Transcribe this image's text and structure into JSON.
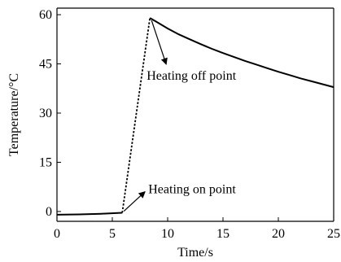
{
  "chart_data": {
    "type": "line",
    "title": "",
    "xlabel": "Time/s",
    "ylabel": "Temperature/°C",
    "xlim": [
      0,
      25
    ],
    "ylim": [
      -3,
      62
    ],
    "xticks": [
      0,
      5,
      10,
      15,
      20,
      25
    ],
    "yticks": [
      0,
      15,
      30,
      45,
      60
    ],
    "grid": false,
    "series": [
      {
        "segment": "pre-heating",
        "style": "solid",
        "x": [
          0,
          2,
          4,
          5.9
        ],
        "y": [
          -1.0,
          -0.9,
          -0.7,
          -0.4
        ]
      },
      {
        "segment": "heating",
        "style": "dotted",
        "x": [
          5.9,
          8.4
        ],
        "y": [
          -0.4,
          59.0
        ]
      },
      {
        "segment": "cooling",
        "style": "solid",
        "x": [
          8.4,
          9,
          10,
          11,
          12,
          13,
          14,
          15,
          16,
          17,
          18,
          19,
          20,
          21,
          22,
          23,
          24,
          25
        ],
        "y": [
          59.0,
          57.8,
          55.8,
          54.0,
          52.5,
          51.0,
          49.6,
          48.3,
          47.1,
          45.9,
          44.8,
          43.7,
          42.6,
          41.6,
          40.6,
          39.7,
          38.8,
          37.9
        ]
      }
    ],
    "annotations": [
      {
        "text": "Heating off point",
        "point": [
          8.4,
          59.0
        ]
      },
      {
        "text": "Heating on point",
        "point": [
          5.9,
          -0.4
        ]
      }
    ]
  }
}
